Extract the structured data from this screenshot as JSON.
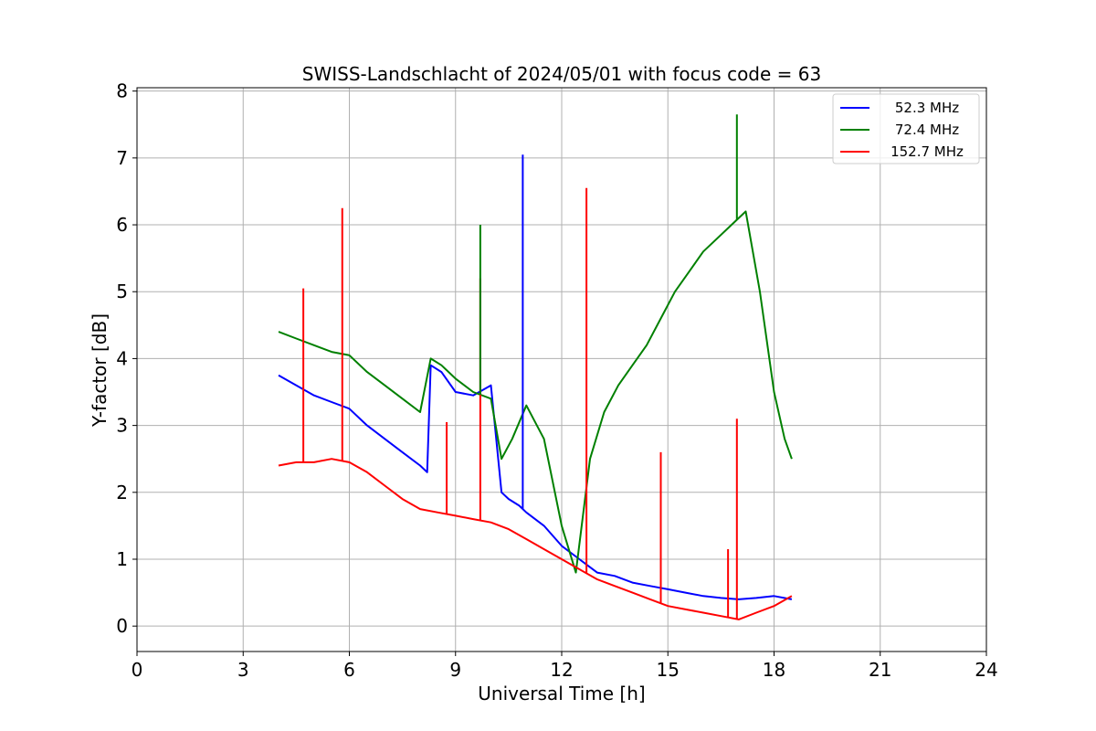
{
  "chart_data": {
    "type": "line",
    "title": "SWISS-Landschlacht of 2024/05/01 with focus code = 63",
    "xlabel": "Universal Time [h]",
    "ylabel": "Y-factor [dB]",
    "xlim": [
      0,
      24
    ],
    "ylim": [
      -0.38,
      8.05
    ],
    "xticks": [
      0,
      3,
      6,
      9,
      12,
      15,
      18,
      21,
      24
    ],
    "yticks": [
      0,
      1,
      2,
      3,
      4,
      5,
      6,
      7,
      8
    ],
    "grid": true,
    "legend_position": "top-right",
    "series": [
      {
        "name": "52.3 MHz",
        "color": "#0000ff",
        "x": [
          4.0,
          4.5,
          5.0,
          5.5,
          6.0,
          6.5,
          7.0,
          7.5,
          8.0,
          8.2,
          8.3,
          8.6,
          9.0,
          9.5,
          10.0,
          10.3,
          10.5,
          10.8,
          11.0,
          11.5,
          12.0,
          12.5,
          13.0,
          13.5,
          14.0,
          14.5,
          15.0,
          15.5,
          16.0,
          16.5,
          17.0,
          17.5,
          18.0,
          18.5
        ],
        "y": [
          3.75,
          3.6,
          3.45,
          3.35,
          3.25,
          3.0,
          2.8,
          2.6,
          2.4,
          2.3,
          3.9,
          3.8,
          3.5,
          3.45,
          3.6,
          2.0,
          1.9,
          1.8,
          1.7,
          1.5,
          1.2,
          1.0,
          0.8,
          0.75,
          0.65,
          0.6,
          0.55,
          0.5,
          0.45,
          0.42,
          0.4,
          0.42,
          0.45,
          0.4
        ]
      },
      {
        "name": "72.4 MHz",
        "color": "#008000",
        "x": [
          4.0,
          4.5,
          5.0,
          5.5,
          6.0,
          6.5,
          7.0,
          7.5,
          8.0,
          8.3,
          8.6,
          9.0,
          9.5,
          10.0,
          10.3,
          10.6,
          11.0,
          11.5,
          12.0,
          12.4,
          12.8,
          13.2,
          13.6,
          14.0,
          14.4,
          14.8,
          15.2,
          15.6,
          16.0,
          16.4,
          16.8,
          17.2,
          17.6,
          18.0,
          18.3,
          18.5
        ],
        "y": [
          4.4,
          4.3,
          4.2,
          4.1,
          4.05,
          3.8,
          3.6,
          3.4,
          3.2,
          4.0,
          3.9,
          3.7,
          3.5,
          3.4,
          2.5,
          2.8,
          3.3,
          2.8,
          1.5,
          0.8,
          2.5,
          3.2,
          3.6,
          3.9,
          4.2,
          4.6,
          5.0,
          5.3,
          5.6,
          5.8,
          6.0,
          6.2,
          5.0,
          3.5,
          2.8,
          2.5
        ]
      },
      {
        "name": "152.7 MHz",
        "color": "#ff0000",
        "x": [
          4.0,
          4.5,
          5.0,
          5.5,
          6.0,
          6.5,
          7.0,
          7.5,
          8.0,
          8.5,
          9.0,
          9.5,
          10.0,
          10.5,
          11.0,
          11.5,
          12.0,
          12.5,
          13.0,
          13.5,
          14.0,
          14.5,
          15.0,
          15.5,
          16.0,
          16.5,
          17.0,
          17.5,
          18.0,
          18.5
        ],
        "y": [
          2.4,
          2.45,
          2.45,
          2.5,
          2.45,
          2.3,
          2.1,
          1.9,
          1.75,
          1.7,
          1.65,
          1.6,
          1.55,
          1.45,
          1.3,
          1.15,
          1.0,
          0.85,
          0.7,
          0.6,
          0.5,
          0.4,
          0.3,
          0.25,
          0.2,
          0.15,
          0.1,
          0.2,
          0.3,
          0.45
        ]
      }
    ],
    "spikes": [
      {
        "series": "152.7 MHz",
        "x": 4.7,
        "y": 5.05
      },
      {
        "series": "152.7 MHz",
        "x": 5.8,
        "y": 6.25
      },
      {
        "series": "152.7 MHz",
        "x": 8.75,
        "y": 3.05
      },
      {
        "series": "152.7 MHz",
        "x": 9.7,
        "y": 5.2
      },
      {
        "series": "52.3 MHz",
        "x": 10.9,
        "y": 7.05
      },
      {
        "series": "72.4 MHz",
        "x": 9.7,
        "y": 6.0
      },
      {
        "series": "152.7 MHz",
        "x": 12.7,
        "y": 6.55
      },
      {
        "series": "152.7 MHz",
        "x": 14.8,
        "y": 2.6
      },
      {
        "series": "152.7 MHz",
        "x": 16.7,
        "y": 1.15
      },
      {
        "series": "152.7 MHz",
        "x": 16.95,
        "y": 3.1
      },
      {
        "series": "72.4 MHz",
        "x": 16.95,
        "y": 7.65
      }
    ]
  }
}
